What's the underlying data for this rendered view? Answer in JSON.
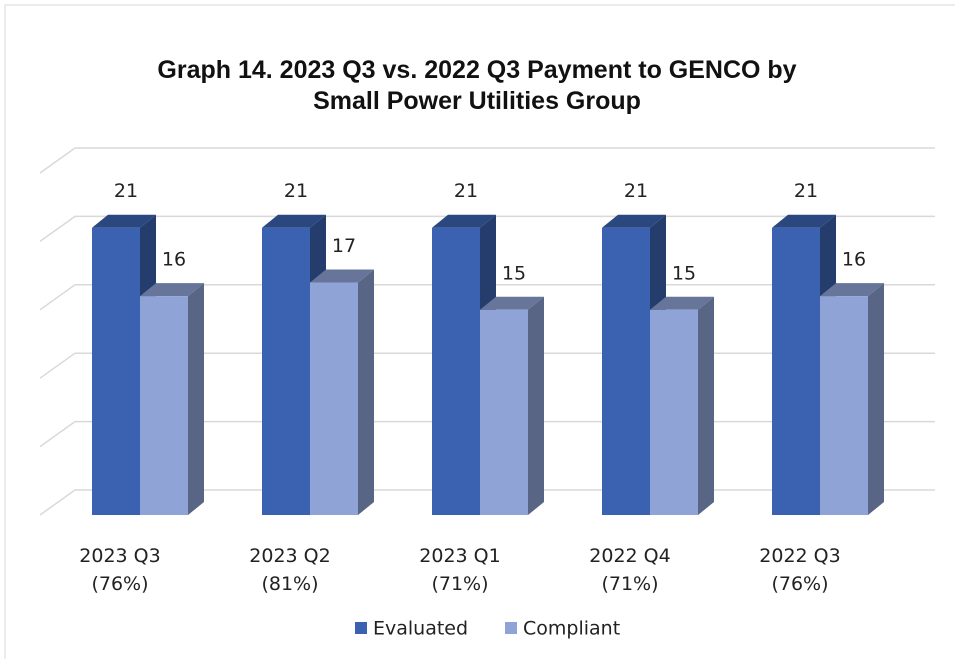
{
  "chart_data": {
    "type": "bar3d",
    "title": "Graph 14. 2023 Q3 vs. 2022 Q3 Payment to GENCO by Small Power Utilities Group",
    "categories": [
      "2023 Q3 (76%)",
      "2023 Q2 (81%)",
      "2023 Q1 (71%)",
      "2022 Q4 (71%)",
      "2022 Q3 (76%)"
    ],
    "series": [
      {
        "name": "Evaluated",
        "color": "#3a62b0",
        "values": [
          21,
          21,
          21,
          21,
          21
        ]
      },
      {
        "name": "Compliant",
        "color": "#8fa3d6",
        "values": [
          16,
          17,
          15,
          15,
          16
        ]
      }
    ],
    "ylim": [
      0,
      25
    ],
    "yticks": [
      0,
      5,
      10,
      15,
      20,
      25
    ],
    "grid": true,
    "legend": "bottom"
  }
}
